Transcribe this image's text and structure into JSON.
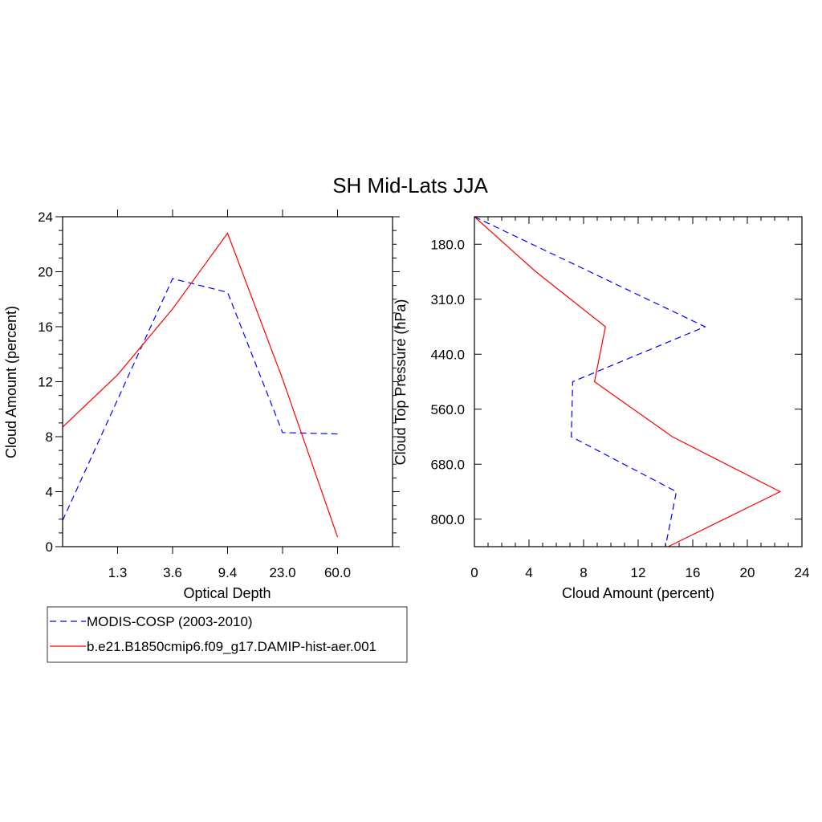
{
  "title": "SH Mid-Lats JJA",
  "chart_data": [
    {
      "type": "line",
      "xlabel": "Optical Depth",
      "ylabel": "Cloud Amount (percent)",
      "x_tick_labels": [
        "1.3",
        "3.6",
        "9.4",
        "23.0",
        "60.0"
      ],
      "x_bins": 7,
      "y_ticks": [
        "0",
        "4",
        "8",
        "12",
        "16",
        "20",
        "24"
      ],
      "ylim": [
        0,
        24
      ],
      "grid": false,
      "series": [
        {
          "name": "MODIS-COSP (2003-2010)",
          "color": "#0000ff",
          "style": "dashed",
          "x": [
            0,
            2,
            3,
            4,
            5
          ],
          "values": [
            1.9,
            19.5,
            18.5,
            8.3,
            8.2
          ]
        },
        {
          "name": "b.e21.B1850cmip6.f09_g17.DAMIP-hist-aer.001",
          "color": "#ff0000",
          "style": "solid",
          "x": [
            0,
            1,
            2,
            3,
            4,
            5
          ],
          "values": [
            8.7,
            12.5,
            17.3,
            22.8,
            12.2,
            0.7
          ]
        }
      ]
    },
    {
      "type": "line",
      "xlabel": "Cloud Amount (percent)",
      "ylabel": "Cloud Top Pressure (hPa)",
      "x_ticks": [
        "0",
        "4",
        "8",
        "12",
        "16",
        "20",
        "24"
      ],
      "xlim": [
        0,
        24
      ],
      "y_tick_labels": [
        "180.0",
        "310.0",
        "440.0",
        "560.0",
        "680.0",
        "800.0"
      ],
      "y_bins": 6,
      "grid": false,
      "series": [
        {
          "name": "MODIS-COSP (2003-2010)",
          "color": "#0000ff",
          "style": "dashed",
          "y": [
            0,
            2,
            3,
            4,
            5,
            6
          ],
          "values": [
            0,
            16.9,
            7.2,
            7.1,
            14.8,
            14.0
          ]
        },
        {
          "name": "b.e21.B1850cmip6.f09_g17.DAMIP-hist-aer.001",
          "color": "#ff0000",
          "style": "solid",
          "y": [
            0,
            1,
            2,
            3,
            4,
            5,
            6
          ],
          "values": [
            0,
            4.5,
            9.6,
            8.8,
            14.5,
            22.4,
            14.2
          ]
        }
      ]
    }
  ],
  "legend": [
    {
      "label": "MODIS-COSP (2003-2010)",
      "color": "#0000ff",
      "style": "dashed"
    },
    {
      "label": "b.e21.B1850cmip6.f09_g17.DAMIP-hist-aer.001",
      "color": "#ff0000",
      "style": "solid"
    }
  ]
}
